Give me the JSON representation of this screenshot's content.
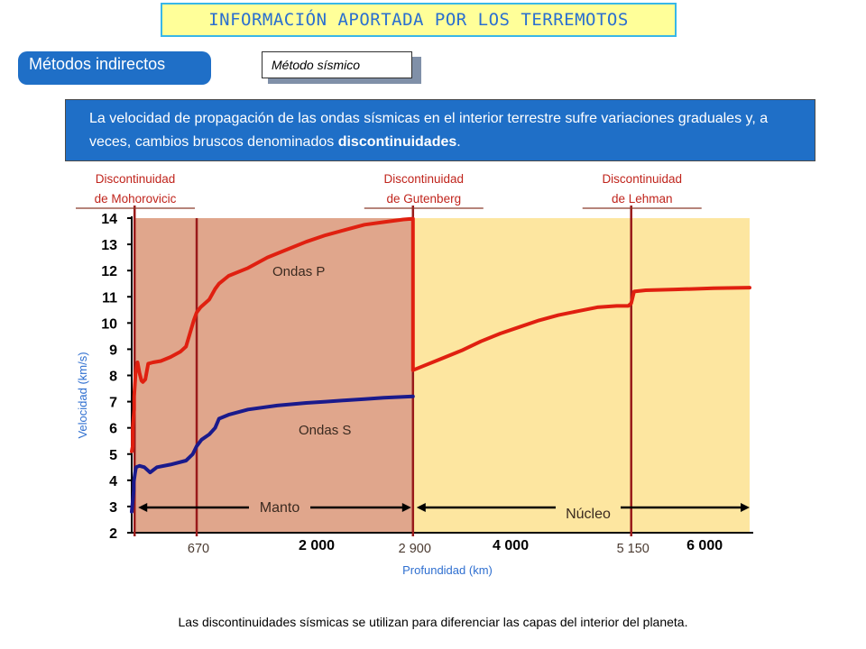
{
  "header": {
    "title": "INFORMACIÓN APORTADA POR LOS TERREMOTOS"
  },
  "methods_tag": "Métodos indirectos",
  "method_button": "Método sísmico",
  "info": {
    "text_before": "La velocidad de propagación de las ondas sísmicas en el interior terrestre sufre variaciones graduales y, a veces, cambios bruscos denominados ",
    "bold_word": "discontinuidades",
    "text_after": "."
  },
  "caption": "Las discontinuidades sísmicas se utilizan para diferenciar las capas del interior del planeta.",
  "colors": {
    "mantle": "#e0a68c",
    "core": "#fde6a0",
    "p_wave": "#e02010",
    "s_wave": "#1a1a8c",
    "discontinuity": "#991a1a",
    "label_red": "#c0241c",
    "axis_label": "#2f6fd0",
    "info_bg": "#1f6fc7"
  },
  "chart_data": {
    "type": "line",
    "xlabel": "Profundidad (km)",
    "ylabel": "Velocidad (km/s)",
    "xlim": [
      0,
      6371
    ],
    "ylim": [
      2,
      14
    ],
    "y_ticks": [
      "14",
      "13",
      "12",
      "11",
      "10",
      "9",
      "8",
      "7",
      "6",
      "5",
      "4",
      "3",
      "2"
    ],
    "x_tick_labels": [
      {
        "value": 670,
        "label": "670",
        "style": "normal"
      },
      {
        "value": 2000,
        "label": "2 000",
        "style": "bold"
      },
      {
        "value": 2900,
        "label": "2 900",
        "style": "normal"
      },
      {
        "value": 4000,
        "label": "4 000",
        "style": "bold"
      },
      {
        "value": 5150,
        "label": "5 150",
        "style": "normal"
      },
      {
        "value": 6000,
        "label": "6 000",
        "style": "bold"
      }
    ],
    "regions": [
      {
        "name": "Manto",
        "start": 30,
        "end": 2900
      },
      {
        "name": "Núcleo",
        "start": 2900,
        "end": 6371
      }
    ],
    "discontinuities": [
      {
        "line1": "Discontinuidad",
        "line2": "de Mohorovicic",
        "depth": 30
      },
      {
        "depth": 670
      },
      {
        "line1": "Discontinuidad",
        "line2": "de Gutenberg",
        "depth": 2900
      },
      {
        "line1": "Discontinuidad",
        "line2": "de Lehman",
        "depth": 5150
      }
    ],
    "series": [
      {
        "name": "Ondas P",
        "x": [
          0,
          10,
          10,
          25,
          25,
          35,
          40,
          60,
          80,
          100,
          115,
          140,
          170,
          220,
          300,
          400,
          500,
          560,
          600,
          640,
          670,
          710,
          800,
          860,
          900,
          1000,
          1200,
          1400,
          1600,
          1800,
          2000,
          2200,
          2400,
          2600,
          2800,
          2900,
          2900,
          3000,
          3200,
          3400,
          3600,
          3800,
          4000,
          4200,
          4400,
          4600,
          4800,
          5000,
          5120,
          5150,
          5180,
          5300,
          5600,
          5800,
          6000,
          6371
        ],
        "y": [
          5.1,
          5.3,
          6.0,
          6.7,
          7.2,
          7.8,
          8.1,
          8.5,
          8.1,
          7.8,
          7.75,
          7.85,
          8.45,
          8.5,
          8.55,
          8.7,
          8.9,
          9.1,
          9.6,
          10.1,
          10.4,
          10.6,
          10.9,
          11.3,
          11.5,
          11.8,
          12.1,
          12.5,
          12.8,
          13.1,
          13.35,
          13.55,
          13.75,
          13.85,
          13.95,
          13.98,
          8.2,
          8.35,
          8.65,
          8.95,
          9.3,
          9.6,
          9.85,
          10.1,
          10.3,
          10.45,
          10.6,
          10.65,
          10.65,
          10.75,
          11.2,
          11.25,
          11.28,
          11.3,
          11.33,
          11.35
        ]
      },
      {
        "name": "Ondas S",
        "x": [
          0,
          10,
          20,
          20,
          35,
          45,
          80,
          130,
          190,
          260,
          400,
          560,
          630,
          670,
          720,
          800,
          860,
          900,
          1000,
          1200,
          1500,
          1800,
          2000,
          2200,
          2400,
          2600,
          2900
        ],
        "y": [
          2.8,
          3.2,
          3.6,
          3.9,
          4.3,
          4.5,
          4.55,
          4.5,
          4.3,
          4.5,
          4.6,
          4.75,
          5.0,
          5.3,
          5.55,
          5.75,
          6.0,
          6.35,
          6.5,
          6.7,
          6.85,
          6.95,
          7.0,
          7.05,
          7.1,
          7.15,
          7.2
        ]
      }
    ]
  }
}
